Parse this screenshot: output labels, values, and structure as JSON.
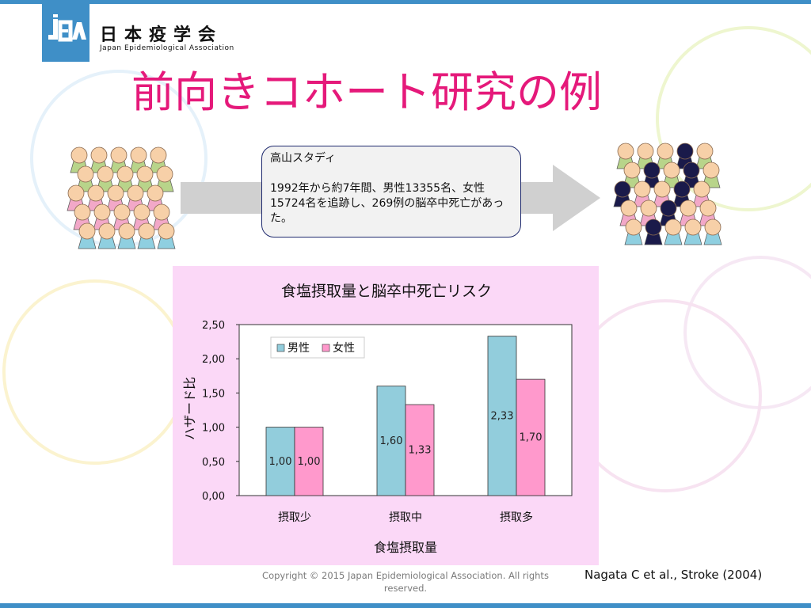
{
  "header": {
    "logo_text": "JEA",
    "org_name": "日本疫学会",
    "org_name_en": "Japan Epidemiological Association"
  },
  "slide": {
    "title": "前向きコホート研究の例"
  },
  "callout": {
    "study_name": "高山スタディ",
    "description": "1992年から約7年間、男性13355名、女性15724名を追跡し、269例の脳卒中死亡があった。"
  },
  "colors": {
    "title": "#e5197a",
    "male_bar": "#92cddc",
    "female_bar": "#ff99cc",
    "chart_bg": "#fbd8f7",
    "accent_bar": "#3f8fc7"
  },
  "chart_data": {
    "type": "bar",
    "title": "食塩摂取量と脳卒中死亡リスク",
    "xlabel": "食塩摂取量",
    "ylabel": "ハザード比",
    "categories": [
      "摂取少",
      "摂取中",
      "摂取多"
    ],
    "series": [
      {
        "name": "男性",
        "values": [
          1.0,
          1.6,
          2.33
        ],
        "labels": [
          "1,00",
          "1,60",
          "2,33"
        ],
        "color": "#92cddc"
      },
      {
        "name": "女性",
        "values": [
          1.0,
          1.33,
          1.7
        ],
        "labels": [
          "1,00",
          "1,33",
          "1,70"
        ],
        "color": "#ff99cc"
      }
    ],
    "ylim": [
      0,
      2.5
    ],
    "yticks": [
      0,
      0.5,
      1.0,
      1.5,
      2.0,
      2.5
    ],
    "ytick_labels": [
      "0,00",
      "0,50",
      "1,00",
      "1,50",
      "2,00",
      "2,50"
    ],
    "legend_position": "top-left",
    "grid": false
  },
  "footer": {
    "copyright": "Copyright © 2015 Japan Epidemiological Association. All rights reserved.",
    "citation": "Nagata C et al., Stroke (2004)"
  }
}
